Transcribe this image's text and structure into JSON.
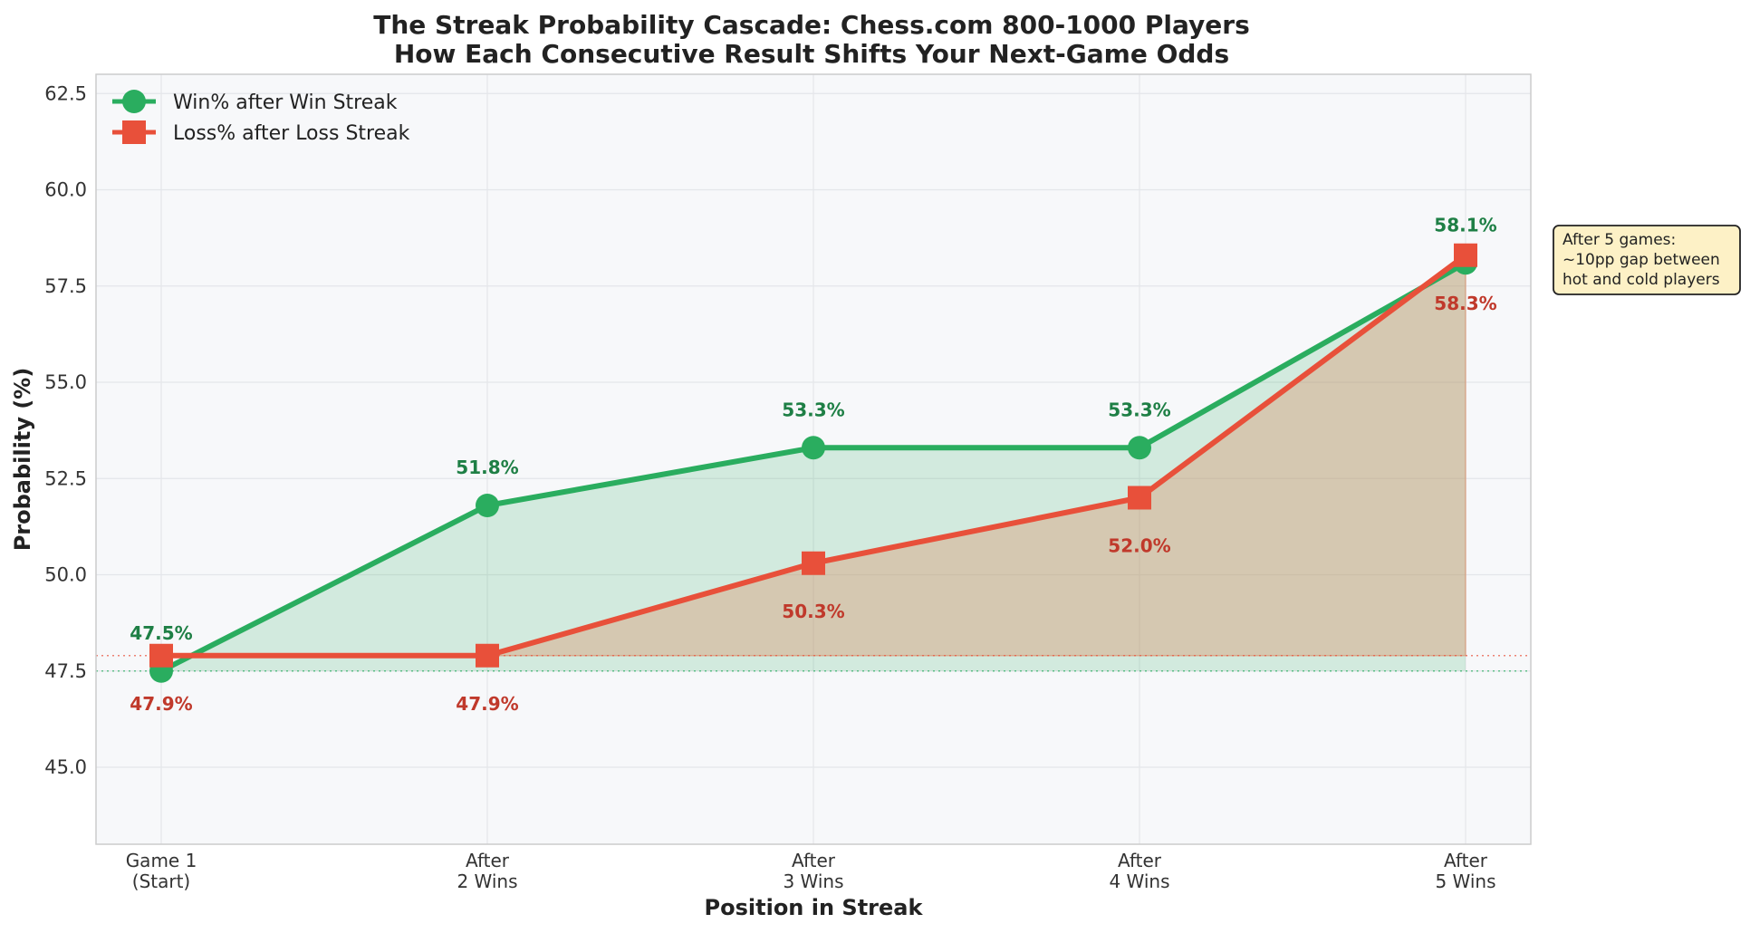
{
  "chart_data": {
    "type": "line",
    "title": [
      "The Streak Probability Cascade: Chess.com 800-1000 Players",
      "How Each Consecutive Result Shifts Your Next-Game Odds"
    ],
    "xlabel": "Position in Streak",
    "ylabel": "Probability (%)",
    "categories": [
      [
        "Game 1",
        "(Start)"
      ],
      [
        "After",
        "2 Wins"
      ],
      [
        "After",
        "3 Wins"
      ],
      [
        "After",
        "4 Wins"
      ],
      [
        "After",
        "5 Wins"
      ]
    ],
    "ylim": [
      43.0,
      63.0
    ],
    "yticks": [
      "45.0",
      "47.5",
      "50.0",
      "52.5",
      "55.0",
      "57.5",
      "60.0",
      "62.5"
    ],
    "grid": true,
    "legend_position": "top-left",
    "series": [
      {
        "name": "Win% after Win Streak",
        "values": [
          47.5,
          51.8,
          53.3,
          53.3,
          58.1
        ],
        "labels": [
          "47.5%",
          "51.8%",
          "53.3%",
          "53.3%",
          "58.1%"
        ],
        "marker": "circle",
        "color": "#2aad5f",
        "label_color": "#1e7f45",
        "fill": "#2aad5f"
      },
      {
        "name": "Loss% after Loss Streak",
        "values": [
          47.9,
          47.9,
          50.3,
          52.0,
          58.3
        ],
        "labels": [
          "47.9%",
          "47.9%",
          "50.3%",
          "52.0%",
          "58.3%"
        ],
        "marker": "square",
        "color": "#e8503a",
        "label_color": "#c0392b",
        "fill": "#d9906a"
      }
    ],
    "annotation": [
      "After 5 games:",
      "~10pp gap between",
      "hot and cold players"
    ],
    "colors": {
      "background": "#f7f8fa",
      "grid": "#e4e6ea",
      "annotation_bg": "#fdf1c6"
    }
  }
}
